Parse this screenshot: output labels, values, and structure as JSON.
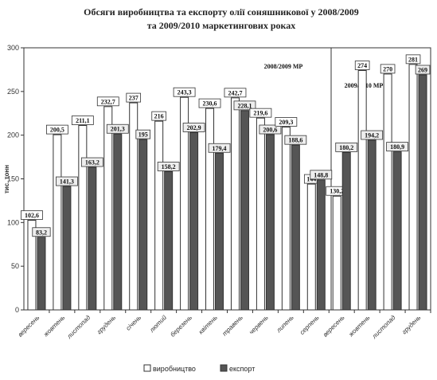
{
  "chart_data": {
    "type": "bar",
    "title_lines": [
      "Обсяги виробництва та експорту олії соняшникової у 2008/2009",
      "та 2009/2010 маркетингових роках"
    ],
    "ylabel": "тис. тонн",
    "ylim": [
      0,
      300
    ],
    "yticks": [
      "0",
      "50",
      "100",
      "150",
      "200",
      "250",
      "300"
    ],
    "categories": [
      "вересень",
      "жовтень",
      "листопад",
      "грудень",
      "січень",
      "лютий",
      "березень",
      "квітень",
      "травень",
      "червень",
      "липень",
      "серпень",
      "вересень",
      "жовтень",
      "листопад",
      "грудень"
    ],
    "series": [
      {
        "name": "виробництво",
        "color": "#ffffff",
        "values": [
          102.6,
          200.5,
          211.1,
          232.7,
          237,
          216,
          243.3,
          230.6,
          242.7,
          219.6,
          209.3,
          144,
          130.2,
          274,
          270,
          281
        ],
        "labels": [
          "102,6",
          "200,5",
          "211,1",
          "232,7",
          "237",
          "216",
          "243,3",
          "230,6",
          "242,7",
          "219,6",
          "209,3",
          "144",
          "130,2",
          "274",
          "270",
          "281"
        ]
      },
      {
        "name": "експорт",
        "color": "#555555",
        "values": [
          83.2,
          141.3,
          163.2,
          201.3,
          195,
          158.2,
          202.9,
          179.4,
          228.1,
          200.6,
          188.6,
          148.8,
          180.2,
          194.2,
          180.9,
          269
        ],
        "labels": [
          "83,2",
          "141,3",
          "163,2",
          "201,3",
          "195",
          "158,2",
          "202,9",
          "179,4",
          "228,1",
          "200,6",
          "188,6",
          "148,8",
          "180,2",
          "194,2",
          "180,9",
          "269"
        ]
      }
    ],
    "period_labels": [
      "2008/2009 МР",
      "2009/2010 МР"
    ],
    "legend_position": "bottom",
    "grid": false
  }
}
